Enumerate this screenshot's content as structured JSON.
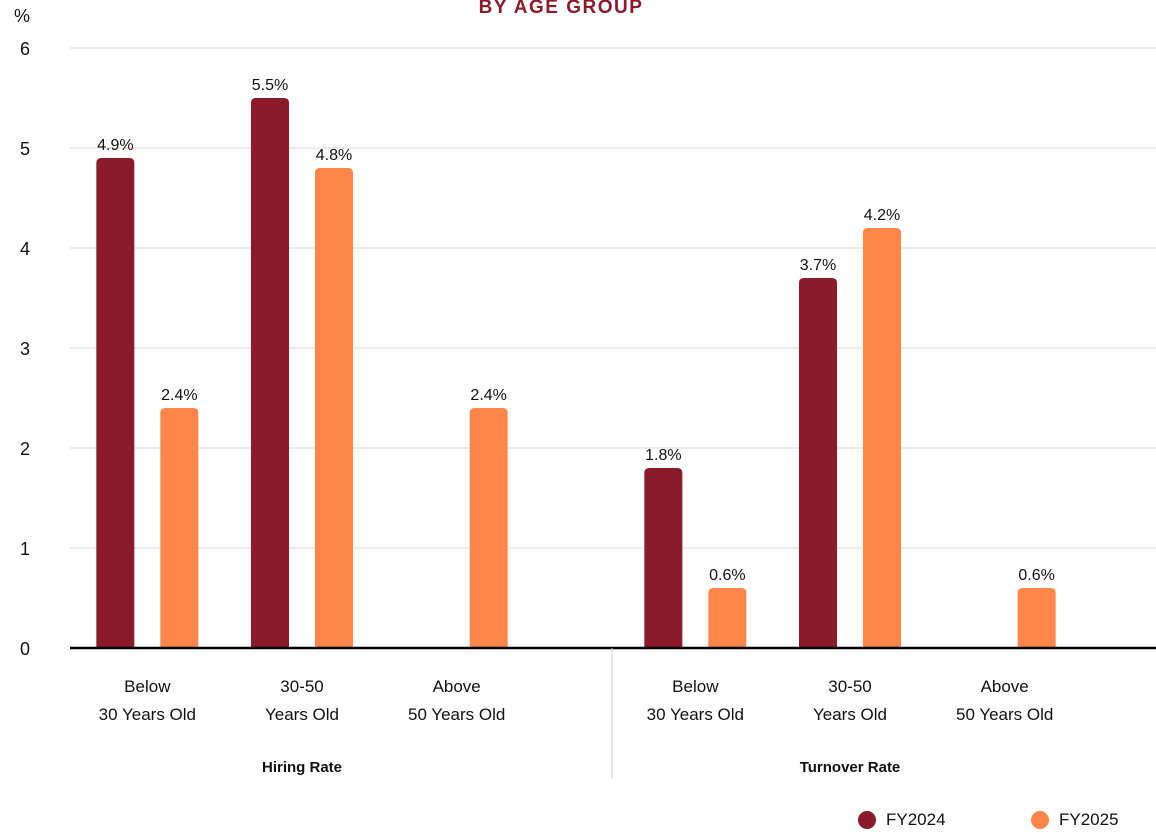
{
  "chart_data": {
    "type": "bar",
    "title": "BY AGE GROUP",
    "y_unit_label": "%",
    "ylim": [
      0,
      6
    ],
    "yticks": [
      0,
      1,
      2,
      3,
      4,
      5,
      6
    ],
    "grid": true,
    "legend_position": "bottom-right",
    "groups": [
      {
        "name": "Hiring Rate",
        "categories": [
          [
            "Below",
            "30 Years Old"
          ],
          [
            "30-50",
            "Years Old"
          ],
          [
            "Above",
            "50 Years Old"
          ]
        ]
      },
      {
        "name": "Turnover Rate",
        "categories": [
          [
            "Below",
            "30 Years Old"
          ],
          [
            "30-50",
            "Years Old"
          ],
          [
            "Above",
            "50 Years Old"
          ]
        ]
      }
    ],
    "series": [
      {
        "name": "FY2024",
        "color": "#8b1a2b",
        "values": [
          4.9,
          5.5,
          null,
          1.8,
          3.7,
          null
        ],
        "labels": [
          "4.9%",
          "5.5%",
          "",
          "1.8%",
          "3.7%",
          ""
        ]
      },
      {
        "name": "FY2025",
        "color": "#ff864a",
        "values": [
          2.4,
          4.8,
          2.4,
          0.6,
          4.2,
          0.6
        ],
        "labels": [
          "2.4%",
          "4.8%",
          "2.4%",
          "0.6%",
          "4.2%",
          "0.6%"
        ]
      }
    ]
  }
}
